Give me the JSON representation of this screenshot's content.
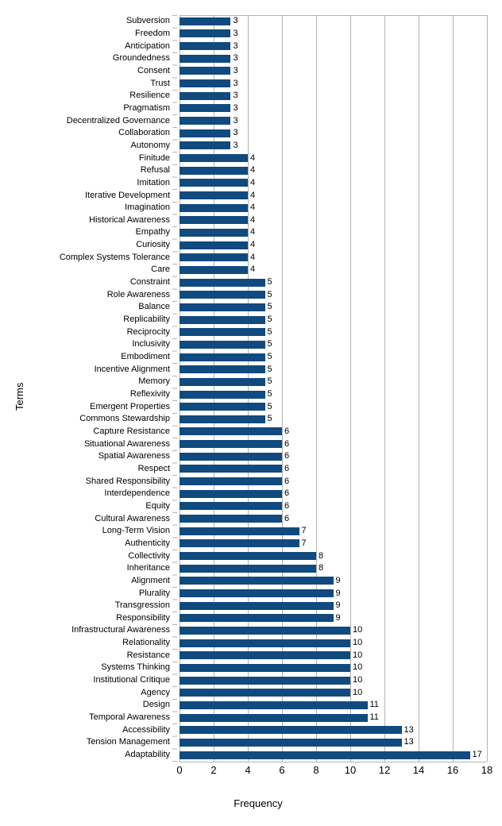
{
  "chart_data": {
    "type": "bar",
    "orientation": "horizontal",
    "title": "",
    "xlabel": "Frequency",
    "ylabel": "Terms",
    "xlim": [
      0,
      18
    ],
    "xticks": [
      0,
      2,
      4,
      6,
      8,
      10,
      12,
      14,
      16,
      18
    ],
    "grid": "vertical gridlines at each x tick",
    "legend": "none",
    "bar_color": "#114a7e",
    "gridline_color": "#b3b3b3",
    "categories": [
      "Subversion",
      "Freedom",
      "Anticipation",
      "Groundedness",
      "Consent",
      "Trust",
      "Resilience",
      "Pragmatism",
      "Decentralized Governance",
      "Collaboration",
      "Autonomy",
      "Finitude",
      "Refusal",
      "Imitation",
      "Iterative Development",
      "Imagination",
      "Historical Awareness",
      "Empathy",
      "Curiosity",
      "Complex Systems Tolerance",
      "Care",
      "Constraint",
      "Role Awareness",
      "Balance",
      "Replicability",
      "Reciprocity",
      "Inclusivity",
      "Embodiment",
      "Incentive Alignment",
      "Memory",
      "Reflexivity",
      "Emergent Properties",
      "Commons Stewardship",
      "Capture Resistance",
      "Situational Awareness",
      "Spatial Awareness",
      "Respect",
      "Shared Responsibility",
      "Interdependence",
      "Equity",
      "Cultural Awareness",
      "Long-Term Vision",
      "Authenticity",
      "Collectivity",
      "Inheritance",
      "Alignment",
      "Plurality",
      "Transgression",
      "Responsibility",
      "Infrastructural Awareness",
      "Relationality",
      "Resistance",
      "Systems Thinking",
      "Institutional Critique",
      "Agency",
      "Design",
      "Temporal Awareness",
      "Accessibility",
      "Tension Management",
      "Adaptability"
    ],
    "values": [
      3,
      3,
      3,
      3,
      3,
      3,
      3,
      3,
      3,
      3,
      3,
      4,
      4,
      4,
      4,
      4,
      4,
      4,
      4,
      4,
      4,
      5,
      5,
      5,
      5,
      5,
      5,
      5,
      5,
      5,
      5,
      5,
      5,
      6,
      6,
      6,
      6,
      6,
      6,
      6,
      6,
      7,
      7,
      8,
      8,
      9,
      9,
      9,
      9,
      10,
      10,
      10,
      10,
      10,
      10,
      11,
      11,
      13,
      13,
      17
    ]
  }
}
